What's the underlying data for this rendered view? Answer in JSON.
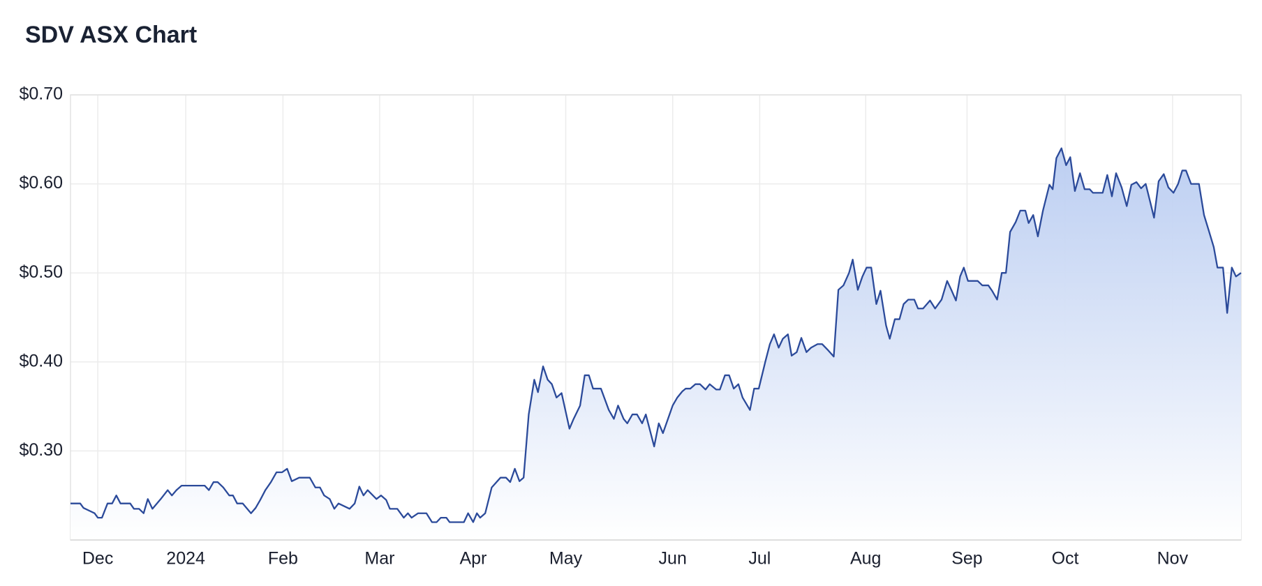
{
  "chart_data": {
    "type": "area",
    "title": "SDV ASX Chart",
    "color": "#2b4a9a",
    "grid": true,
    "xlim": [
      0,
      252.9
    ],
    "ylim": [
      0.2,
      0.7
    ],
    "xticks": [
      {
        "value": 5.9,
        "label": "Dec"
      },
      {
        "value": 24.9,
        "label": "2024"
      },
      {
        "value": 45.9,
        "label": "Feb"
      },
      {
        "value": 66.8,
        "label": "Mar"
      },
      {
        "value": 87.0,
        "label": "Apr"
      },
      {
        "value": 107.0,
        "label": "May"
      },
      {
        "value": 130.1,
        "label": "Jun"
      },
      {
        "value": 148.9,
        "label": "Jul"
      },
      {
        "value": 171.8,
        "label": "Aug"
      },
      {
        "value": 193.7,
        "label": "Sep"
      },
      {
        "value": 214.9,
        "label": "Oct"
      },
      {
        "value": 238.1,
        "label": "Nov"
      }
    ],
    "yticks": [
      {
        "value": 0.3,
        "label": "$0.30"
      },
      {
        "value": 0.4,
        "label": "$0.40"
      },
      {
        "value": 0.5,
        "label": "$0.50"
      },
      {
        "value": 0.6,
        "label": "$0.60"
      },
      {
        "value": 0.7,
        "label": "$0.70"
      }
    ],
    "x": [
      0,
      2.1,
      2.8,
      5.2,
      5.9,
      6.8,
      8.0,
      9.0,
      9.9,
      10.8,
      12.9,
      13.7,
      14.8,
      15.8,
      16.7,
      17.7,
      19.5,
      21.0,
      21.9,
      22.9,
      24.0,
      29.0,
      29.9,
      30.9,
      31.8,
      33.0,
      34.3,
      35.1,
      36.0,
      37.2,
      39.0,
      40.0,
      41.0,
      42.1,
      43.3,
      44.5,
      45.7,
      46.8,
      47.8,
      49.4,
      51.7,
      52.9,
      53.9,
      54.8,
      56.0,
      57.0,
      57.9,
      60.3,
      61.4,
      62.4,
      63.3,
      64.2,
      66.1,
      67.1,
      68.2,
      69.0,
      70.6,
      72.0,
      72.9,
      73.7,
      75.1,
      76.9,
      78.1,
      79.1,
      80.0,
      81.2,
      81.9,
      85.0,
      85.9,
      87.0,
      87.8,
      88.5,
      89.6,
      91.0,
      92.9,
      94.1,
      95.0,
      96.0,
      97.0,
      97.9,
      99.0,
      100.2,
      101.0,
      102.1,
      103.1,
      104.0,
      105.0,
      106.1,
      107.8,
      108.7,
      110.1,
      111.1,
      112.0,
      112.9,
      114.6,
      116.3,
      117.4,
      118.3,
      119.5,
      120.3,
      121.4,
      122.4,
      123.5,
      124.3,
      126.1,
      127.1,
      128.0,
      130.1,
      131.1,
      132.2,
      132.9,
      133.9,
      135.0,
      136.0,
      137.2,
      138.1,
      139.5,
      140.3,
      141.4,
      142.3,
      143.3,
      144.3,
      145.2,
      146.8,
      147.7,
      148.7,
      150.1,
      151.1,
      152.0,
      153.0,
      153.9,
      155.0,
      155.8,
      156.9,
      157.9,
      159.0,
      160.0,
      161.4,
      162.4,
      163.7,
      164.9,
      165.9,
      167.0,
      168.2,
      169.0,
      170.1,
      171.1,
      172.0,
      173.0,
      174.1,
      175.0,
      176.2,
      177.0,
      178.1,
      179.1,
      180.0,
      181.0,
      182.3,
      183.1,
      184.2,
      185.7,
      186.8,
      188.2,
      189.4,
      190.3,
      191.3,
      192.2,
      193.0,
      193.9,
      196.0,
      197.0,
      198.3,
      199.1,
      200.2,
      201.2,
      202.1,
      203.0,
      204.2,
      205.2,
      206.3,
      207.0,
      208.0,
      209.0,
      210.1,
      211.5,
      212.2,
      213.0,
      214.1,
      215.1,
      216.0,
      217.0,
      218.1,
      219.1,
      220.2,
      220.9,
      223.0,
      224.0,
      225.0,
      225.9,
      227.1,
      228.2,
      229.2,
      230.3,
      231.3,
      232.3,
      233.4,
      234.1,
      235.1,
      236.2,
      237.2,
      238.3,
      239.3,
      240.2,
      241.0,
      242.1,
      243.8,
      244.9,
      245.9,
      247.0,
      247.8,
      249.0,
      249.9,
      250.9,
      251.8,
      252.9
    ],
    "values": [
      0.241,
      0.241,
      0.236,
      0.23,
      0.225,
      0.225,
      0.241,
      0.241,
      0.25,
      0.241,
      0.241,
      0.235,
      0.235,
      0.23,
      0.246,
      0.235,
      0.246,
      0.256,
      0.25,
      0.256,
      0.261,
      0.261,
      0.256,
      0.265,
      0.265,
      0.259,
      0.25,
      0.25,
      0.241,
      0.241,
      0.23,
      0.236,
      0.245,
      0.256,
      0.265,
      0.276,
      0.276,
      0.28,
      0.266,
      0.27,
      0.27,
      0.259,
      0.259,
      0.25,
      0.246,
      0.235,
      0.241,
      0.235,
      0.241,
      0.26,
      0.25,
      0.256,
      0.246,
      0.25,
      0.245,
      0.235,
      0.235,
      0.225,
      0.23,
      0.225,
      0.23,
      0.23,
      0.22,
      0.22,
      0.225,
      0.225,
      0.22,
      0.22,
      0.23,
      0.22,
      0.23,
      0.225,
      0.23,
      0.259,
      0.27,
      0.27,
      0.265,
      0.28,
      0.266,
      0.27,
      0.341,
      0.38,
      0.366,
      0.395,
      0.38,
      0.375,
      0.36,
      0.365,
      0.325,
      0.336,
      0.351,
      0.385,
      0.385,
      0.37,
      0.37,
      0.346,
      0.336,
      0.351,
      0.336,
      0.331,
      0.341,
      0.341,
      0.331,
      0.341,
      0.305,
      0.331,
      0.32,
      0.351,
      0.36,
      0.367,
      0.37,
      0.37,
      0.375,
      0.375,
      0.369,
      0.375,
      0.369,
      0.369,
      0.385,
      0.385,
      0.37,
      0.375,
      0.36,
      0.346,
      0.37,
      0.37,
      0.4,
      0.42,
      0.431,
      0.416,
      0.426,
      0.431,
      0.407,
      0.411,
      0.427,
      0.411,
      0.416,
      0.42,
      0.42,
      0.413,
      0.406,
      0.481,
      0.486,
      0.5,
      0.515,
      0.481,
      0.496,
      0.506,
      0.506,
      0.465,
      0.48,
      0.441,
      0.426,
      0.448,
      0.448,
      0.465,
      0.47,
      0.47,
      0.46,
      0.46,
      0.469,
      0.46,
      0.47,
      0.491,
      0.481,
      0.469,
      0.496,
      0.506,
      0.491,
      0.491,
      0.486,
      0.486,
      0.48,
      0.47,
      0.5,
      0.5,
      0.546,
      0.557,
      0.57,
      0.57,
      0.556,
      0.565,
      0.541,
      0.57,
      0.599,
      0.594,
      0.629,
      0.64,
      0.621,
      0.63,
      0.592,
      0.612,
      0.594,
      0.594,
      0.59,
      0.59,
      0.61,
      0.586,
      0.612,
      0.596,
      0.575,
      0.599,
      0.602,
      0.595,
      0.6,
      0.577,
      0.562,
      0.603,
      0.611,
      0.596,
      0.59,
      0.6,
      0.615,
      0.615,
      0.6,
      0.6,
      0.565,
      0.548,
      0.529,
      0.506,
      0.506,
      0.455,
      0.506,
      0.496,
      0.5
    ]
  }
}
